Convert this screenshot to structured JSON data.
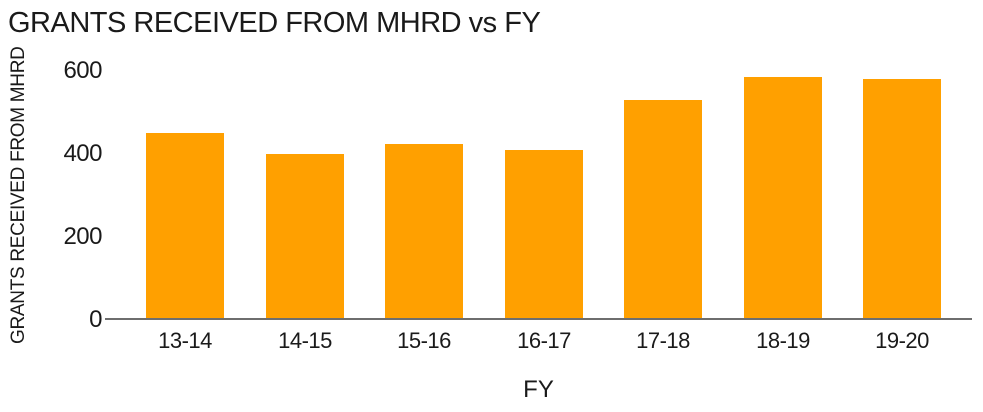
{
  "title": "GRANTS RECEIVED FROM MHRD vs FY",
  "colors": {
    "bar": "#FFA000",
    "axis_line": "#6E6E6E",
    "text": "#1A1A1A",
    "background": "#FFFFFF"
  },
  "chart_data": {
    "type": "bar",
    "title": "GRANTS RECEIVED FROM MHRD vs FY",
    "xlabel": "FY",
    "ylabel": "GRANTS RECEIVED FROM MHRD",
    "categories": [
      "13-14",
      "14-15",
      "15-16",
      "16-17",
      "17-18",
      "18-19",
      "19-20"
    ],
    "values": [
      445,
      395,
      420,
      405,
      525,
      580,
      575
    ],
    "ylim": [
      0,
      600
    ],
    "yticks": [
      0,
      200,
      400,
      600
    ],
    "grid": false,
    "legend": false,
    "bar_color": "#FFA000"
  }
}
